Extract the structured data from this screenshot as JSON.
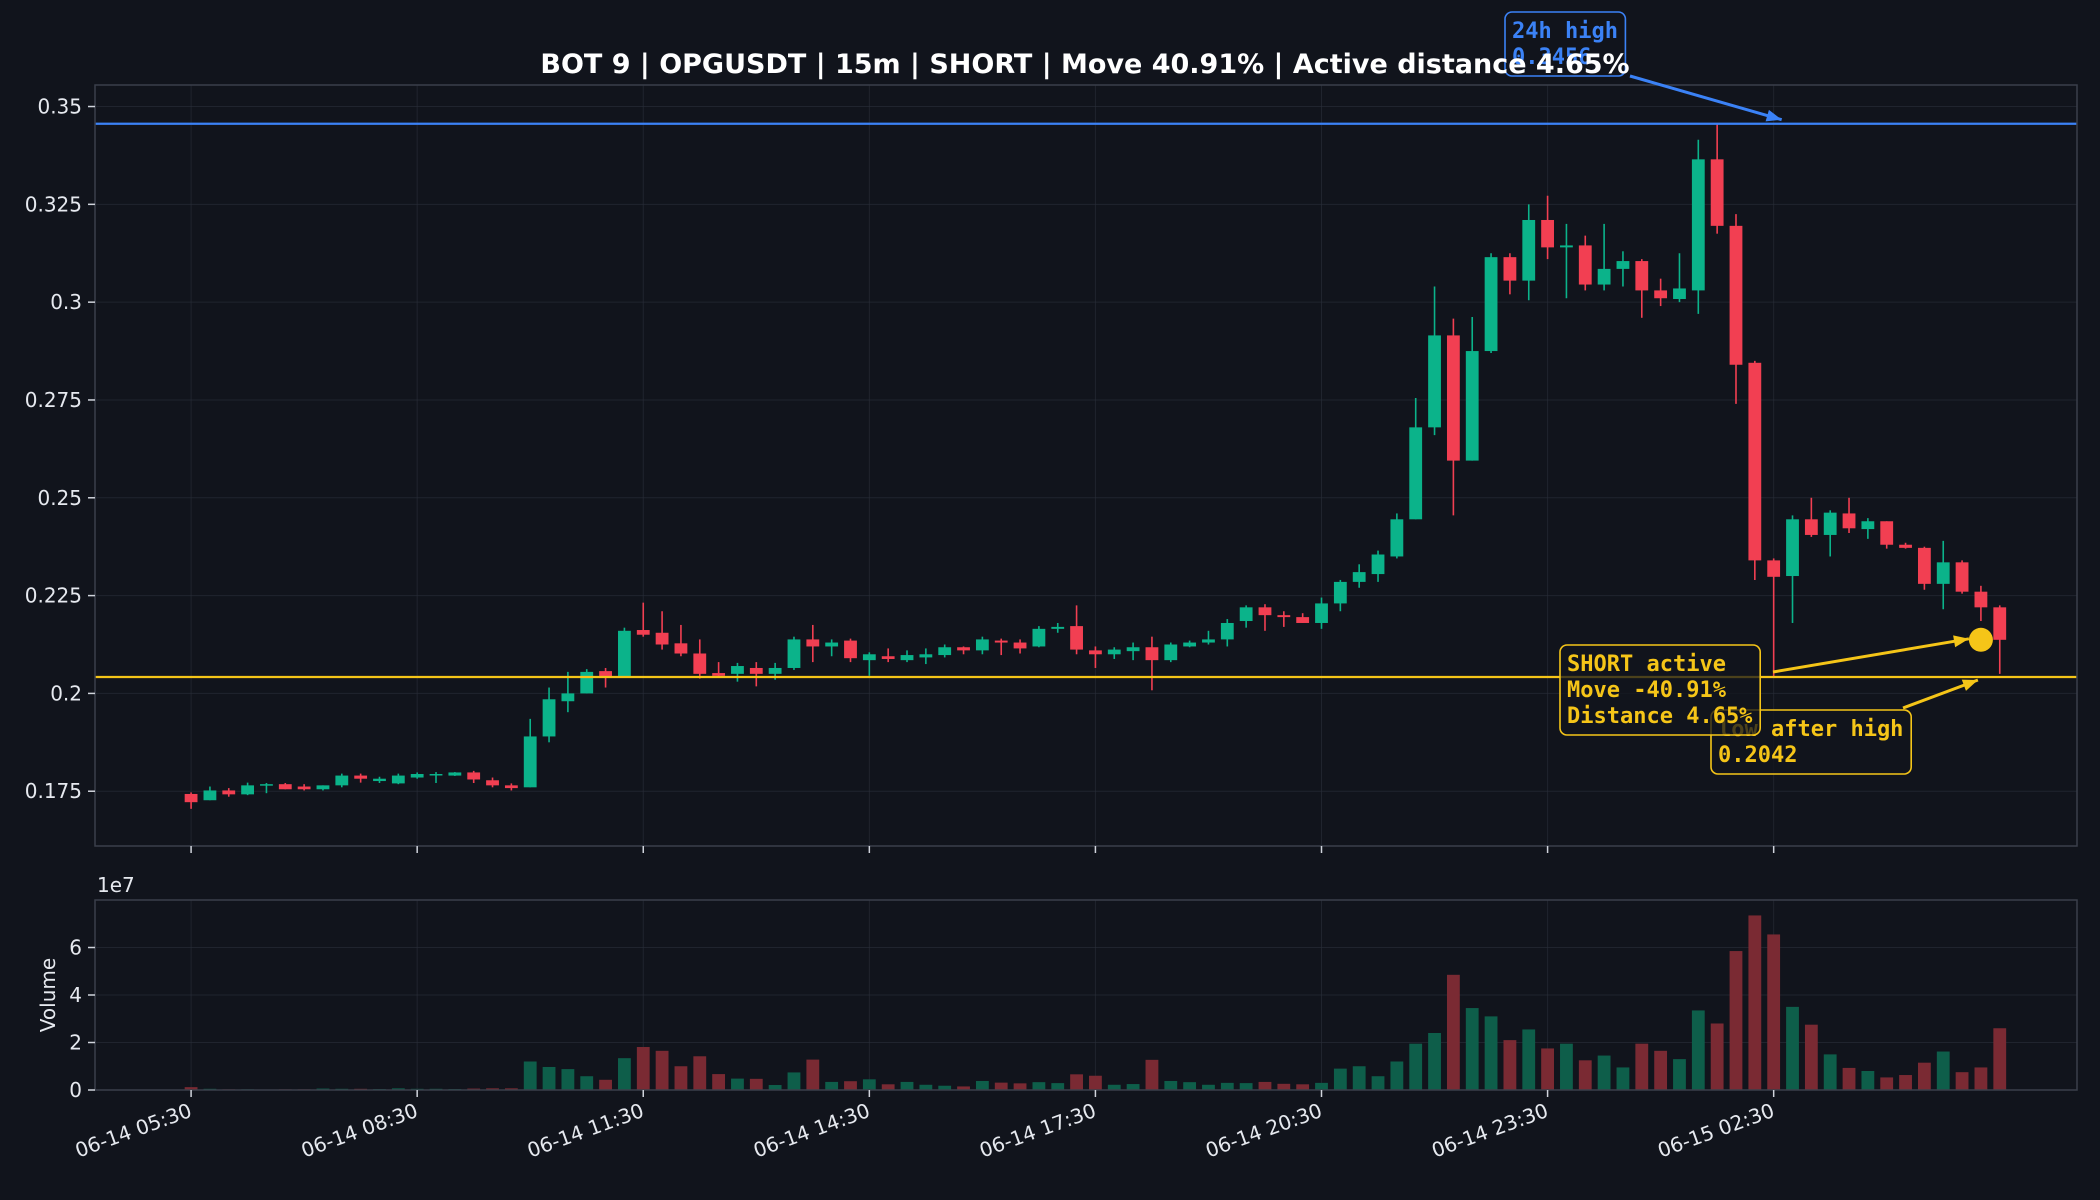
{
  "chart_data": {
    "type": "candlestick",
    "title": "BOT 9 | OPGUSDT | 15m | SHORT | Move 40.91% | Active distance 4.65%",
    "price_ylim": [
      0.161,
      0.3555
    ],
    "price_yticks": [
      {
        "v": 0.175,
        "label": "0.175"
      },
      {
        "v": 0.2,
        "label": "0.2"
      },
      {
        "v": 0.225,
        "label": "0.225"
      },
      {
        "v": 0.25,
        "label": "0.25"
      },
      {
        "v": 0.275,
        "label": "0.275"
      },
      {
        "v": 0.3,
        "label": "0.3"
      },
      {
        "v": 0.325,
        "label": "0.325"
      },
      {
        "v": 0.35,
        "label": "0.35"
      }
    ],
    "x_ticks": [
      {
        "i": 0,
        "label": "06-14 05:30"
      },
      {
        "i": 12,
        "label": "06-14 08:30"
      },
      {
        "i": 24,
        "label": "06-14 11:30"
      },
      {
        "i": 36,
        "label": "06-14 14:30"
      },
      {
        "i": 48,
        "label": "06-14 17:30"
      },
      {
        "i": 60,
        "label": "06-14 20:30"
      },
      {
        "i": 72,
        "label": "06-14 23:30"
      },
      {
        "i": 84,
        "label": "06-15 02:30"
      }
    ],
    "x_range": [
      -5.1,
      100.1
    ],
    "volume_ylim": [
      0,
      8
    ],
    "volume_yticks": [
      0,
      2,
      4,
      6
    ],
    "volume_ylabel": "Volume",
    "volume_exponent": "1e7",
    "lines": [
      {
        "name": "24h high",
        "value": 0.3456,
        "color": "#3b82f6"
      },
      {
        "name": "low after high",
        "value": 0.2042,
        "color": "#f5c518"
      }
    ],
    "annotations": {
      "high": {
        "lines": [
          "24h high",
          "0.3456"
        ],
        "color": "#3b82f6"
      },
      "low": {
        "lines": [
          "low after high",
          "0.2042"
        ],
        "color": "#f5c518"
      },
      "active": {
        "lines": [
          "SHORT active",
          "Move -40.91%",
          "Distance 4.65%"
        ],
        "color": "#f5c518"
      }
    },
    "current_marker": {
      "i": 95,
      "value": 0.2137
    },
    "colors": {
      "up": "#0bb38a",
      "down": "#f23f52",
      "background": "#11141c",
      "grid": "#2a2f3a"
    },
    "candles": [
      {
        "o": 0.1743,
        "h": 0.1747,
        "l": 0.1705,
        "c": 0.1722,
        "v": 0.12
      },
      {
        "o": 0.1727,
        "h": 0.1762,
        "l": 0.1727,
        "c": 0.1752,
        "v": 0.05
      },
      {
        "o": 0.1752,
        "h": 0.1758,
        "l": 0.1736,
        "c": 0.1742,
        "v": 0.03
      },
      {
        "o": 0.1742,
        "h": 0.1772,
        "l": 0.174,
        "c": 0.1765,
        "v": 0.03
      },
      {
        "o": 0.1765,
        "h": 0.1771,
        "l": 0.1745,
        "c": 0.1768,
        "v": 0.02
      },
      {
        "o": 0.1768,
        "h": 0.1771,
        "l": 0.1755,
        "c": 0.1755,
        "v": 0.03
      },
      {
        "o": 0.1762,
        "h": 0.1768,
        "l": 0.1752,
        "c": 0.1755,
        "v": 0.03
      },
      {
        "o": 0.1755,
        "h": 0.1765,
        "l": 0.1752,
        "c": 0.1765,
        "v": 0.06
      },
      {
        "o": 0.1765,
        "h": 0.1795,
        "l": 0.176,
        "c": 0.179,
        "v": 0.05
      },
      {
        "o": 0.179,
        "h": 0.1795,
        "l": 0.1772,
        "c": 0.1782,
        "v": 0.05
      },
      {
        "o": 0.1776,
        "h": 0.1787,
        "l": 0.1771,
        "c": 0.1782,
        "v": 0.04
      },
      {
        "o": 0.177,
        "h": 0.1795,
        "l": 0.1768,
        "c": 0.179,
        "v": 0.07
      },
      {
        "o": 0.1785,
        "h": 0.1798,
        "l": 0.1782,
        "c": 0.1794,
        "v": 0.05
      },
      {
        "o": 0.1794,
        "h": 0.1799,
        "l": 0.1771,
        "c": 0.1794,
        "v": 0.05
      },
      {
        "o": 0.179,
        "h": 0.1799,
        "l": 0.1789,
        "c": 0.1798,
        "v": 0.04
      },
      {
        "o": 0.1798,
        "h": 0.1802,
        "l": 0.1771,
        "c": 0.178,
        "v": 0.06
      },
      {
        "o": 0.1778,
        "h": 0.1785,
        "l": 0.176,
        "c": 0.1765,
        "v": 0.07
      },
      {
        "o": 0.1765,
        "h": 0.177,
        "l": 0.1752,
        "c": 0.1758,
        "v": 0.07
      },
      {
        "o": 0.176,
        "h": 0.1935,
        "l": 0.176,
        "c": 0.189,
        "v": 1.2
      },
      {
        "o": 0.189,
        "h": 0.2015,
        "l": 0.1875,
        "c": 0.1985,
        "v": 0.97
      },
      {
        "o": 0.198,
        "h": 0.2055,
        "l": 0.1952,
        "c": 0.2,
        "v": 0.88
      },
      {
        "o": 0.2,
        "h": 0.2062,
        "l": 0.2,
        "c": 0.2055,
        "v": 0.58
      },
      {
        "o": 0.2057,
        "h": 0.2065,
        "l": 0.2015,
        "c": 0.204,
        "v": 0.43
      },
      {
        "o": 0.2042,
        "h": 0.2168,
        "l": 0.2042,
        "c": 0.216,
        "v": 1.34
      },
      {
        "o": 0.2162,
        "h": 0.2232,
        "l": 0.2145,
        "c": 0.215,
        "v": 1.81
      },
      {
        "o": 0.2155,
        "h": 0.221,
        "l": 0.2112,
        "c": 0.2125,
        "v": 1.65
      },
      {
        "o": 0.2128,
        "h": 0.2175,
        "l": 0.2095,
        "c": 0.2102,
        "v": 1.0
      },
      {
        "o": 0.2102,
        "h": 0.2138,
        "l": 0.2038,
        "c": 0.205,
        "v": 1.42
      },
      {
        "o": 0.2052,
        "h": 0.208,
        "l": 0.204,
        "c": 0.2045,
        "v": 0.67
      },
      {
        "o": 0.205,
        "h": 0.2078,
        "l": 0.203,
        "c": 0.207,
        "v": 0.48
      },
      {
        "o": 0.2065,
        "h": 0.208,
        "l": 0.2018,
        "c": 0.205,
        "v": 0.47
      },
      {
        "o": 0.205,
        "h": 0.2078,
        "l": 0.2035,
        "c": 0.2065,
        "v": 0.21
      },
      {
        "o": 0.2065,
        "h": 0.2145,
        "l": 0.206,
        "c": 0.2138,
        "v": 0.74
      },
      {
        "o": 0.2138,
        "h": 0.2175,
        "l": 0.208,
        "c": 0.212,
        "v": 1.28
      },
      {
        "o": 0.212,
        "h": 0.2138,
        "l": 0.2095,
        "c": 0.213,
        "v": 0.34
      },
      {
        "o": 0.2135,
        "h": 0.214,
        "l": 0.208,
        "c": 0.209,
        "v": 0.37
      },
      {
        "o": 0.2085,
        "h": 0.2105,
        "l": 0.2045,
        "c": 0.21,
        "v": 0.45
      },
      {
        "o": 0.2095,
        "h": 0.2115,
        "l": 0.208,
        "c": 0.2088,
        "v": 0.24
      },
      {
        "o": 0.2085,
        "h": 0.211,
        "l": 0.208,
        "c": 0.2098,
        "v": 0.34
      },
      {
        "o": 0.2092,
        "h": 0.2115,
        "l": 0.2075,
        "c": 0.21,
        "v": 0.22
      },
      {
        "o": 0.2098,
        "h": 0.2125,
        "l": 0.2092,
        "c": 0.2118,
        "v": 0.18
      },
      {
        "o": 0.2118,
        "h": 0.212,
        "l": 0.21,
        "c": 0.211,
        "v": 0.15
      },
      {
        "o": 0.211,
        "h": 0.2145,
        "l": 0.21,
        "c": 0.2138,
        "v": 0.38
      },
      {
        "o": 0.2135,
        "h": 0.214,
        "l": 0.2098,
        "c": 0.213,
        "v": 0.31
      },
      {
        "o": 0.213,
        "h": 0.2138,
        "l": 0.2102,
        "c": 0.2115,
        "v": 0.28
      },
      {
        "o": 0.212,
        "h": 0.2172,
        "l": 0.2118,
        "c": 0.2165,
        "v": 0.33
      },
      {
        "o": 0.2165,
        "h": 0.218,
        "l": 0.2155,
        "c": 0.217,
        "v": 0.29
      },
      {
        "o": 0.2172,
        "h": 0.2225,
        "l": 0.21,
        "c": 0.2112,
        "v": 0.66
      },
      {
        "o": 0.211,
        "h": 0.212,
        "l": 0.2065,
        "c": 0.21,
        "v": 0.6
      },
      {
        "o": 0.21,
        "h": 0.2118,
        "l": 0.2088,
        "c": 0.2112,
        "v": 0.22
      },
      {
        "o": 0.2108,
        "h": 0.213,
        "l": 0.2085,
        "c": 0.2118,
        "v": 0.25
      },
      {
        "o": 0.2118,
        "h": 0.2145,
        "l": 0.2008,
        "c": 0.2085,
        "v": 1.27
      },
      {
        "o": 0.2085,
        "h": 0.213,
        "l": 0.208,
        "c": 0.2125,
        "v": 0.38
      },
      {
        "o": 0.212,
        "h": 0.2135,
        "l": 0.2118,
        "c": 0.213,
        "v": 0.33
      },
      {
        "o": 0.213,
        "h": 0.216,
        "l": 0.2125,
        "c": 0.2138,
        "v": 0.22
      },
      {
        "o": 0.2138,
        "h": 0.219,
        "l": 0.212,
        "c": 0.218,
        "v": 0.3
      },
      {
        "o": 0.2185,
        "h": 0.2225,
        "l": 0.2168,
        "c": 0.222,
        "v": 0.29
      },
      {
        "o": 0.222,
        "h": 0.2228,
        "l": 0.216,
        "c": 0.22,
        "v": 0.34
      },
      {
        "o": 0.22,
        "h": 0.221,
        "l": 0.217,
        "c": 0.2195,
        "v": 0.26
      },
      {
        "o": 0.2195,
        "h": 0.2205,
        "l": 0.218,
        "c": 0.218,
        "v": 0.24
      },
      {
        "o": 0.218,
        "h": 0.2245,
        "l": 0.2165,
        "c": 0.223,
        "v": 0.3
      },
      {
        "o": 0.223,
        "h": 0.229,
        "l": 0.221,
        "c": 0.2285,
        "v": 0.9
      },
      {
        "o": 0.2285,
        "h": 0.233,
        "l": 0.227,
        "c": 0.231,
        "v": 1.0
      },
      {
        "o": 0.2305,
        "h": 0.2365,
        "l": 0.2285,
        "c": 0.2355,
        "v": 0.58
      },
      {
        "o": 0.235,
        "h": 0.246,
        "l": 0.2345,
        "c": 0.2445,
        "v": 1.2
      },
      {
        "o": 0.2445,
        "h": 0.2755,
        "l": 0.2445,
        "c": 0.268,
        "v": 1.95
      },
      {
        "o": 0.268,
        "h": 0.304,
        "l": 0.266,
        "c": 0.2915,
        "v": 2.4
      },
      {
        "o": 0.2915,
        "h": 0.2958,
        "l": 0.2455,
        "c": 0.2595,
        "v": 4.85
      },
      {
        "o": 0.2595,
        "h": 0.2962,
        "l": 0.2595,
        "c": 0.2875,
        "v": 3.45
      },
      {
        "o": 0.2875,
        "h": 0.3125,
        "l": 0.287,
        "c": 0.3115,
        "v": 3.1
      },
      {
        "o": 0.3115,
        "h": 0.3125,
        "l": 0.302,
        "c": 0.3055,
        "v": 2.1
      },
      {
        "o": 0.3055,
        "h": 0.325,
        "l": 0.3005,
        "c": 0.321,
        "v": 2.55
      },
      {
        "o": 0.321,
        "h": 0.3272,
        "l": 0.311,
        "c": 0.314,
        "v": 1.75
      },
      {
        "o": 0.314,
        "h": 0.32,
        "l": 0.301,
        "c": 0.3145,
        "v": 1.95
      },
      {
        "o": 0.3145,
        "h": 0.317,
        "l": 0.303,
        "c": 0.3045,
        "v": 1.25
      },
      {
        "o": 0.3045,
        "h": 0.32,
        "l": 0.303,
        "c": 0.3085,
        "v": 1.45
      },
      {
        "o": 0.3085,
        "h": 0.313,
        "l": 0.304,
        "c": 0.3105,
        "v": 0.95
      },
      {
        "o": 0.3105,
        "h": 0.311,
        "l": 0.296,
        "c": 0.303,
        "v": 1.95
      },
      {
        "o": 0.303,
        "h": 0.306,
        "l": 0.299,
        "c": 0.301,
        "v": 1.65
      },
      {
        "o": 0.3008,
        "h": 0.3125,
        "l": 0.3,
        "c": 0.3035,
        "v": 1.3
      },
      {
        "o": 0.303,
        "h": 0.3415,
        "l": 0.297,
        "c": 0.3365,
        "v": 3.35
      },
      {
        "o": 0.3365,
        "h": 0.3456,
        "l": 0.3175,
        "c": 0.3195,
        "v": 2.8
      },
      {
        "o": 0.3195,
        "h": 0.3225,
        "l": 0.274,
        "c": 0.284,
        "v": 5.85
      },
      {
        "o": 0.2845,
        "h": 0.285,
        "l": 0.229,
        "c": 0.234,
        "v": 7.35
      },
      {
        "o": 0.234,
        "h": 0.2345,
        "l": 0.2042,
        "c": 0.2298,
        "v": 6.55
      },
      {
        "o": 0.23,
        "h": 0.2455,
        "l": 0.218,
        "c": 0.2445,
        "v": 3.5
      },
      {
        "o": 0.2445,
        "h": 0.25,
        "l": 0.24,
        "c": 0.2405,
        "v": 2.75
      },
      {
        "o": 0.2405,
        "h": 0.2468,
        "l": 0.235,
        "c": 0.2462,
        "v": 1.5
      },
      {
        "o": 0.246,
        "h": 0.25,
        "l": 0.241,
        "c": 0.2422,
        "v": 0.93
      },
      {
        "o": 0.242,
        "h": 0.2448,
        "l": 0.2395,
        "c": 0.244,
        "v": 0.8
      },
      {
        "o": 0.244,
        "h": 0.244,
        "l": 0.237,
        "c": 0.238,
        "v": 0.53
      },
      {
        "o": 0.238,
        "h": 0.2385,
        "l": 0.237,
        "c": 0.2372,
        "v": 0.63
      },
      {
        "o": 0.2372,
        "h": 0.2375,
        "l": 0.2265,
        "c": 0.228,
        "v": 1.15
      },
      {
        "o": 0.228,
        "h": 0.239,
        "l": 0.2215,
        "c": 0.2335,
        "v": 1.62
      },
      {
        "o": 0.2335,
        "h": 0.234,
        "l": 0.2255,
        "c": 0.226,
        "v": 0.75
      },
      {
        "o": 0.226,
        "h": 0.2275,
        "l": 0.2185,
        "c": 0.222,
        "v": 0.95
      },
      {
        "o": 0.222,
        "h": 0.2225,
        "l": 0.205,
        "c": 0.2137,
        "v": 2.6
      }
    ]
  }
}
